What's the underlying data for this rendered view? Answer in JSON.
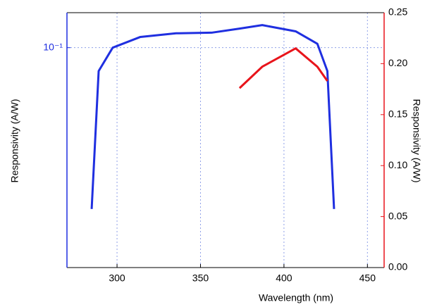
{
  "chart_data": {
    "type": "line",
    "xlabel": "Wavelength (nm)",
    "ylabel": "Responsivity (A/W)",
    "y2label": "Responsivity (A/W)",
    "x": [
      284.8,
      289,
      297.4,
      314,
      335.4,
      356.6,
      373.4,
      387,
      407,
      420,
      426,
      430
    ],
    "series": [
      {
        "name": "blue",
        "color": "#1f2fe0",
        "axis": "y",
        "values": [
          0.00063,
          0.048,
          0.1,
          0.14,
          0.157,
          0.16,
          0.182,
          0.203,
          0.167,
          0.113,
          0.048,
          0.00063
        ]
      },
      {
        "name": "red",
        "color": "#e8141b",
        "axis": "y2",
        "values": [
          null,
          null,
          null,
          null,
          null,
          null,
          0.176,
          0.197,
          0.215,
          0.197,
          0.183,
          null
        ]
      }
    ],
    "xlim": [
      270,
      460
    ],
    "xticks": [
      300,
      350,
      400,
      450
    ],
    "ylim": [
      0.0001,
      0.3
    ],
    "ylog": true,
    "yticks": [
      {
        "value": 0.1,
        "label": "10⁻¹"
      }
    ],
    "y2lim": [
      0,
      0.25
    ],
    "y2ticks": [
      {
        "value": 0,
        "label": "0.00"
      },
      0.05,
      {
        "value": 0.1,
        "label": "0.10"
      },
      0.15,
      {
        "value": 0.2,
        "label": "0.20"
      },
      0.25
    ],
    "grid": true
  }
}
